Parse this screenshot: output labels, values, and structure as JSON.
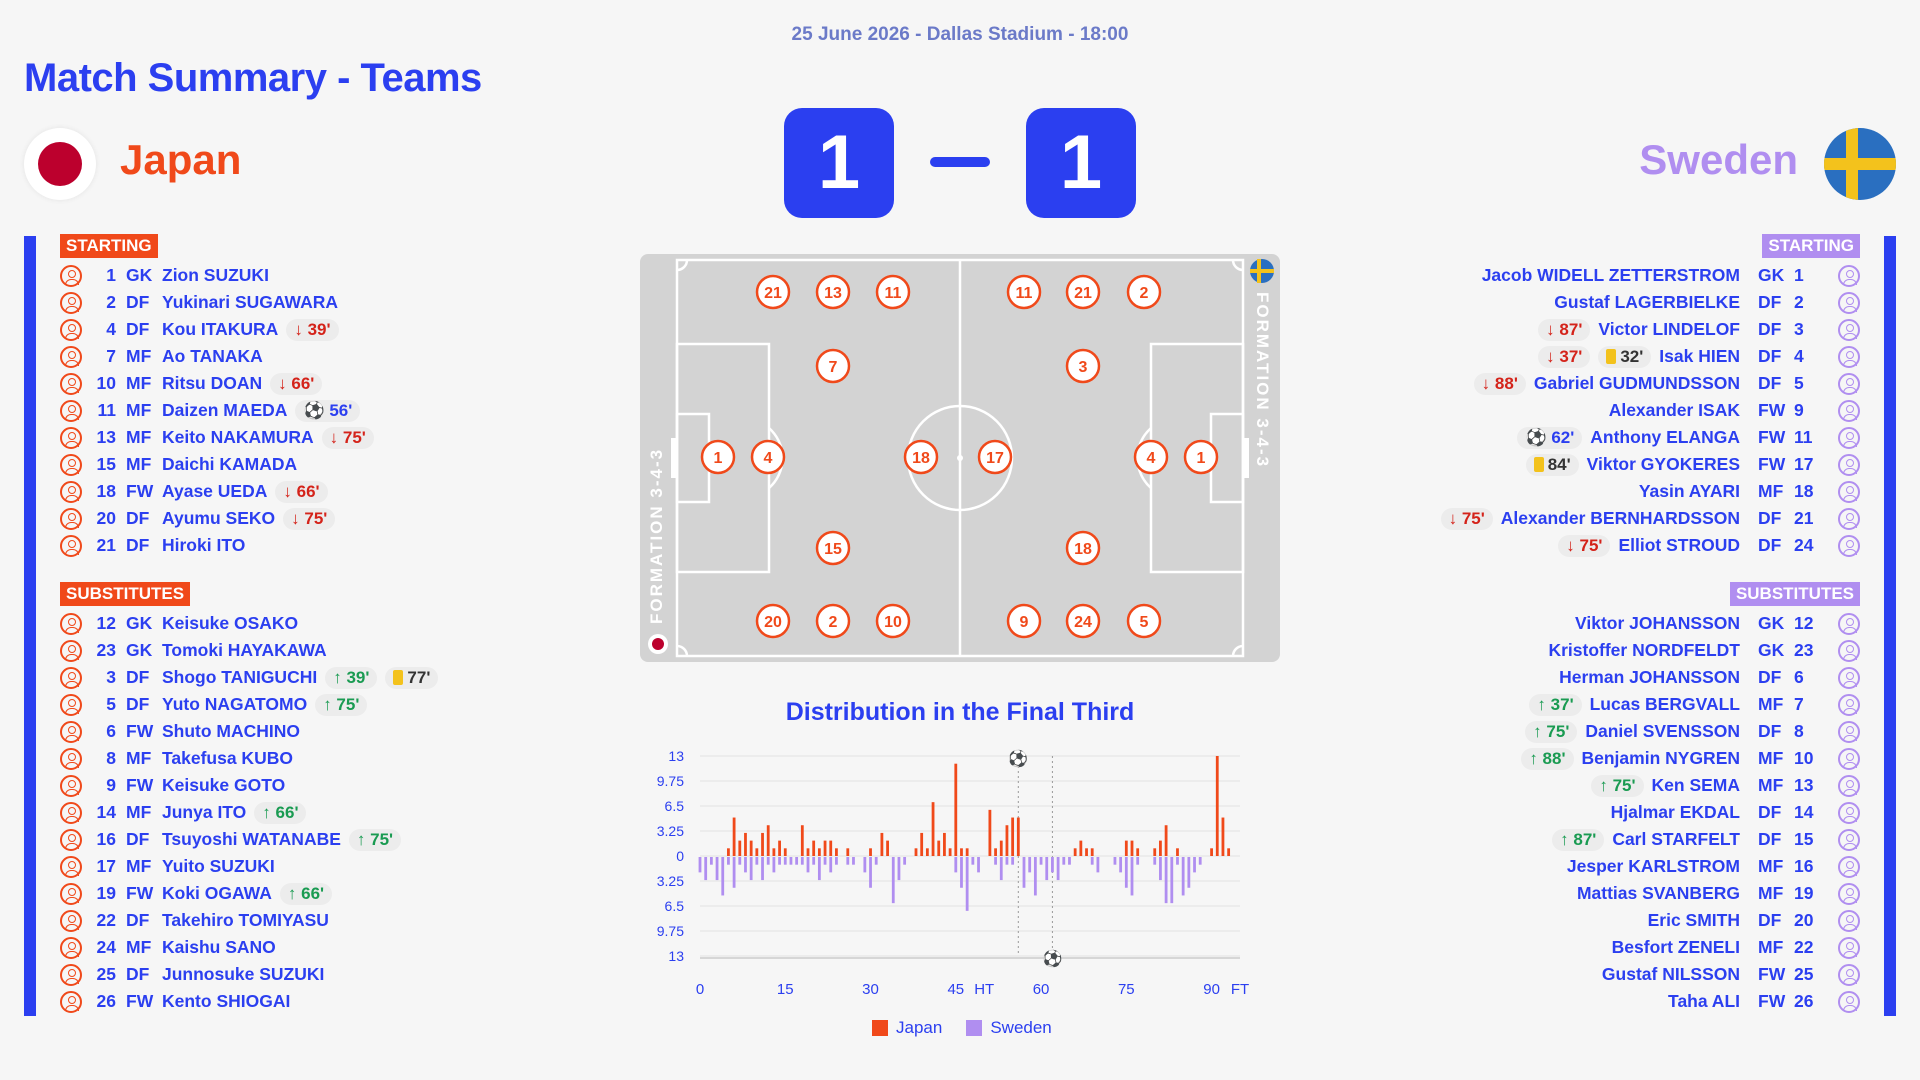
{
  "header": {
    "date": "25 June 2026 - Dallas Stadium - 18:00",
    "title": "Match Summary - Teams"
  },
  "teams": {
    "home": "Japan",
    "away": "Sweden"
  },
  "score": {
    "home": "1",
    "away": "1"
  },
  "labels": {
    "starting": "STARTING",
    "substitutes": "SUBSTITUTES"
  },
  "colors": {
    "accent": "#2b3ff0",
    "home": "#f0491a",
    "away": "#b08ef0",
    "sub_in": "#1a9b52",
    "sub_out": "#d4231a",
    "yellow_card": "#f3c21c"
  },
  "japan_starting": [
    {
      "num": "1",
      "pos": "GK",
      "name": "Zion SUZUKI",
      "events": []
    },
    {
      "num": "2",
      "pos": "DF",
      "name": "Yukinari SUGAWARA",
      "events": []
    },
    {
      "num": "4",
      "pos": "DF",
      "name": "Kou ITAKURA",
      "events": [
        {
          "type": "out",
          "min": "39'"
        }
      ]
    },
    {
      "num": "7",
      "pos": "MF",
      "name": "Ao TANAKA",
      "events": []
    },
    {
      "num": "10",
      "pos": "MF",
      "name": "Ritsu DOAN",
      "events": [
        {
          "type": "out",
          "min": "66'"
        }
      ]
    },
    {
      "num": "11",
      "pos": "MF",
      "name": "Daizen MAEDA",
      "events": [
        {
          "type": "goal",
          "min": "56'"
        }
      ]
    },
    {
      "num": "13",
      "pos": "MF",
      "name": "Keito NAKAMURA",
      "events": [
        {
          "type": "out",
          "min": "75'"
        }
      ]
    },
    {
      "num": "15",
      "pos": "MF",
      "name": "Daichi KAMADA",
      "events": []
    },
    {
      "num": "18",
      "pos": "FW",
      "name": "Ayase UEDA",
      "events": [
        {
          "type": "out",
          "min": "66'"
        }
      ]
    },
    {
      "num": "20",
      "pos": "DF",
      "name": "Ayumu SEKO",
      "events": [
        {
          "type": "out",
          "min": "75'"
        }
      ]
    },
    {
      "num": "21",
      "pos": "DF",
      "name": "Hiroki ITO",
      "events": []
    }
  ],
  "japan_subs": [
    {
      "num": "12",
      "pos": "GK",
      "name": "Keisuke OSAKO",
      "events": []
    },
    {
      "num": "23",
      "pos": "GK",
      "name": "Tomoki HAYAKAWA",
      "events": []
    },
    {
      "num": "3",
      "pos": "DF",
      "name": "Shogo TANIGUCHI",
      "events": [
        {
          "type": "in",
          "min": "39'"
        },
        {
          "type": "card",
          "min": "77'"
        }
      ]
    },
    {
      "num": "5",
      "pos": "DF",
      "name": "Yuto NAGATOMO",
      "events": [
        {
          "type": "in",
          "min": "75'"
        }
      ]
    },
    {
      "num": "6",
      "pos": "FW",
      "name": "Shuto MACHINO",
      "events": []
    },
    {
      "num": "8",
      "pos": "MF",
      "name": "Takefusa KUBO",
      "events": []
    },
    {
      "num": "9",
      "pos": "FW",
      "name": "Keisuke GOTO",
      "events": []
    },
    {
      "num": "14",
      "pos": "MF",
      "name": "Junya ITO",
      "events": [
        {
          "type": "in",
          "min": "66'"
        }
      ]
    },
    {
      "num": "16",
      "pos": "DF",
      "name": "Tsuyoshi WATANABE",
      "events": [
        {
          "type": "in",
          "min": "75'"
        }
      ]
    },
    {
      "num": "17",
      "pos": "MF",
      "name": "Yuito SUZUKI",
      "events": []
    },
    {
      "num": "19",
      "pos": "FW",
      "name": "Koki OGAWA",
      "events": [
        {
          "type": "in",
          "min": "66'"
        }
      ]
    },
    {
      "num": "22",
      "pos": "DF",
      "name": "Takehiro TOMIYASU",
      "events": []
    },
    {
      "num": "24",
      "pos": "MF",
      "name": "Kaishu SANO",
      "events": []
    },
    {
      "num": "25",
      "pos": "DF",
      "name": "Junnosuke SUZUKI",
      "events": []
    },
    {
      "num": "26",
      "pos": "FW",
      "name": "Kento SHIOGAI",
      "events": []
    }
  ],
  "sweden_starting": [
    {
      "num": "1",
      "pos": "GK",
      "name": "Jacob WIDELL ZETTERSTROM",
      "events": []
    },
    {
      "num": "2",
      "pos": "DF",
      "name": "Gustaf LAGERBIELKE",
      "events": []
    },
    {
      "num": "3",
      "pos": "DF",
      "name": "Victor LINDELOF",
      "events": [
        {
          "type": "out",
          "min": "87'"
        }
      ]
    },
    {
      "num": "4",
      "pos": "DF",
      "name": "Isak HIEN",
      "events": [
        {
          "type": "out",
          "min": "37'"
        },
        {
          "type": "card",
          "min": "32'"
        }
      ]
    },
    {
      "num": "5",
      "pos": "DF",
      "name": "Gabriel GUDMUNDSSON",
      "events": [
        {
          "type": "out",
          "min": "88'"
        }
      ]
    },
    {
      "num": "9",
      "pos": "FW",
      "name": "Alexander ISAK",
      "events": []
    },
    {
      "num": "11",
      "pos": "FW",
      "name": "Anthony ELANGA",
      "events": [
        {
          "type": "goal",
          "min": "62'"
        }
      ]
    },
    {
      "num": "17",
      "pos": "FW",
      "name": "Viktor GYOKERES",
      "events": [
        {
          "type": "card",
          "min": "84'"
        }
      ]
    },
    {
      "num": "18",
      "pos": "MF",
      "name": "Yasin AYARI",
      "events": []
    },
    {
      "num": "21",
      "pos": "DF",
      "name": "Alexander BERNHARDSSON",
      "events": [
        {
          "type": "out",
          "min": "75'"
        }
      ]
    },
    {
      "num": "24",
      "pos": "DF",
      "name": "Elliot STROUD",
      "events": [
        {
          "type": "out",
          "min": "75'"
        }
      ]
    }
  ],
  "sweden_subs": [
    {
      "num": "12",
      "pos": "GK",
      "name": "Viktor JOHANSSON",
      "events": []
    },
    {
      "num": "23",
      "pos": "GK",
      "name": "Kristoffer NORDFELDT",
      "events": []
    },
    {
      "num": "6",
      "pos": "DF",
      "name": "Herman JOHANSSON",
      "events": []
    },
    {
      "num": "7",
      "pos": "MF",
      "name": "Lucas BERGVALL",
      "events": [
        {
          "type": "in",
          "min": "37'"
        }
      ]
    },
    {
      "num": "8",
      "pos": "DF",
      "name": "Daniel SVENSSON",
      "events": [
        {
          "type": "in",
          "min": "75'"
        }
      ]
    },
    {
      "num": "10",
      "pos": "MF",
      "name": "Benjamin NYGREN",
      "events": [
        {
          "type": "in",
          "min": "88'"
        }
      ]
    },
    {
      "num": "13",
      "pos": "MF",
      "name": "Ken SEMA",
      "events": [
        {
          "type": "in",
          "min": "75'"
        }
      ]
    },
    {
      "num": "14",
      "pos": "DF",
      "name": "Hjalmar EKDAL",
      "events": []
    },
    {
      "num": "15",
      "pos": "DF",
      "name": "Carl STARFELT",
      "events": [
        {
          "type": "in",
          "min": "87'"
        }
      ]
    },
    {
      "num": "16",
      "pos": "MF",
      "name": "Jesper KARLSTROM",
      "events": []
    },
    {
      "num": "19",
      "pos": "MF",
      "name": "Mattias SVANBERG",
      "events": []
    },
    {
      "num": "20",
      "pos": "DF",
      "name": "Eric SMITH",
      "events": []
    },
    {
      "num": "22",
      "pos": "MF",
      "name": "Besfort ZENELI",
      "events": []
    },
    {
      "num": "25",
      "pos": "FW",
      "name": "Gustaf NILSSON",
      "events": []
    },
    {
      "num": "26",
      "pos": "FW",
      "name": "Taha ALI",
      "events": []
    }
  ],
  "pitch": {
    "formation_home": "FORMATION 3-4-3",
    "formation_away": "FORMATION 3-4-3",
    "home_players": [
      "21",
      "13",
      "11",
      "7",
      "1",
      "4",
      "18",
      "15",
      "20",
      "2",
      "10"
    ],
    "away_players": [
      "11",
      "21",
      "2",
      "3",
      "17",
      "4",
      "1",
      "18",
      "9",
      "24",
      "5"
    ]
  },
  "chart_data": {
    "type": "bar",
    "title": "Distribution in the Final Third",
    "x_ticks": [
      "0",
      "15",
      "30",
      "45",
      "HT",
      "60",
      "75",
      "90",
      "FT"
    ],
    "y_ticks_top": [
      "13",
      "9.75",
      "6.5",
      "3.25",
      "0"
    ],
    "y_ticks_bottom": [
      "3.25",
      "6.5",
      "9.75",
      "13"
    ],
    "ylim": [
      -13,
      13
    ],
    "goal_minutes": {
      "Japan": 56,
      "Sweden": 62
    },
    "series": [
      {
        "name": "Japan",
        "color": "#f0491a",
        "x": [
          5,
          6,
          7,
          8,
          9,
          10,
          11,
          12,
          13,
          14,
          15,
          18,
          19,
          20,
          21,
          22,
          23,
          24,
          26,
          30,
          32,
          33,
          38,
          39,
          40,
          41,
          42,
          43,
          44,
          45,
          46,
          47,
          51,
          52,
          53,
          54,
          55,
          56,
          66,
          67,
          68,
          69,
          75,
          76,
          77,
          80,
          81,
          82,
          84,
          90,
          91,
          92,
          93
        ],
        "values": [
          1,
          5,
          2,
          3,
          2,
          1,
          3,
          4,
          1,
          2,
          1,
          4,
          1,
          2,
          1,
          2,
          2,
          1,
          1,
          1,
          3,
          2,
          1,
          3,
          1,
          7,
          2,
          3,
          1,
          12,
          1,
          1,
          6,
          1,
          2,
          4,
          5,
          5,
          1,
          2,
          1,
          1,
          2,
          2,
          1,
          1,
          2,
          4,
          1,
          1,
          13,
          5,
          1
        ]
      },
      {
        "name": "Sweden",
        "color": "#b08ef0",
        "x": [
          0,
          1,
          2,
          3,
          4,
          5,
          6,
          7,
          8,
          9,
          10,
          11,
          12,
          13,
          14,
          15,
          16,
          17,
          18,
          19,
          20,
          21,
          22,
          23,
          24,
          26,
          27,
          29,
          30,
          31,
          34,
          35,
          36,
          45,
          46,
          47,
          48,
          49,
          52,
          53,
          54,
          55,
          57,
          58,
          59,
          60,
          61,
          62,
          63,
          64,
          65,
          69,
          70,
          73,
          74,
          75,
          76,
          77,
          80,
          81,
          82,
          83,
          84,
          85,
          86,
          87,
          88
        ],
        "values": [
          2,
          3,
          1,
          3,
          5,
          1,
          4,
          1,
          2,
          3,
          1,
          3,
          1,
          2,
          1,
          1,
          1,
          1,
          1,
          2,
          1,
          3,
          1,
          2,
          1,
          1,
          1,
          2,
          4,
          1,
          6,
          3,
          1,
          2,
          4,
          7,
          1,
          2,
          1,
          3,
          1,
          1,
          4,
          2,
          5,
          1,
          3,
          2,
          3,
          1,
          1,
          1,
          2,
          1,
          2,
          4,
          5,
          1,
          1,
          3,
          6,
          6,
          1,
          5,
          4,
          2,
          1
        ]
      }
    ]
  }
}
